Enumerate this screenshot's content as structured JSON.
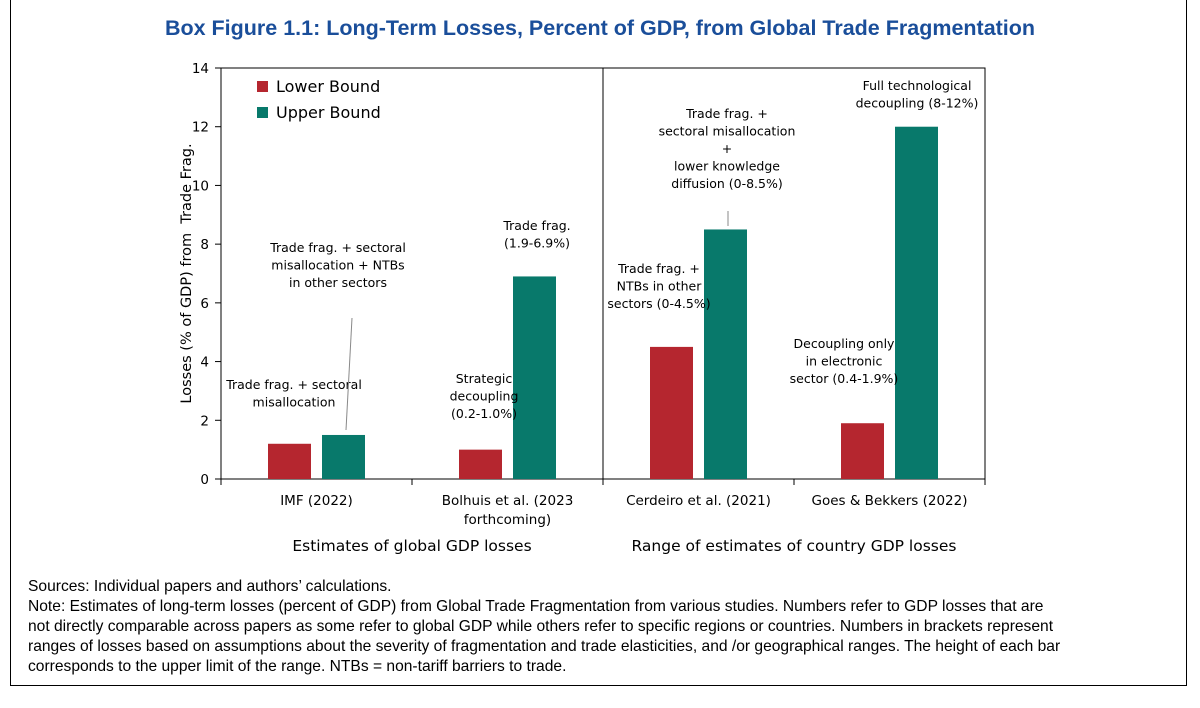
{
  "title": "Box Figure 1.1: Long-Term Losses, Percent of GDP, from Global Trade Fragmentation",
  "chart_data": {
    "type": "bar",
    "categories": [
      "IMF (2022)",
      "Bolhuis et al. (2023 forthcoming)",
      "Cerdeiro et al. (2021)",
      "Goes & Bekkers (2022)"
    ],
    "category_label_lines": [
      [
        "IMF (2022)"
      ],
      [
        "Bolhuis et al. (2023",
        "forthcoming)"
      ],
      [
        "Cerdeiro et al. (2021)"
      ],
      [
        "Goes & Bekkers (2022)"
      ]
    ],
    "series": [
      {
        "name": "Lower Bound",
        "color": "#b5262f",
        "values": [
          1.2,
          1.0,
          4.5,
          1.9
        ]
      },
      {
        "name": "Upper Bound",
        "color": "#08796b",
        "values": [
          1.5,
          6.9,
          8.5,
          12.0
        ]
      }
    ],
    "ylabel": "Losses (% of GDP) from  Trade Frag.",
    "ylim": [
      0,
      14
    ],
    "yticks": [
      0,
      2,
      4,
      6,
      8,
      10,
      12,
      14
    ],
    "legend_position": "top-left",
    "group_labels": [
      "Estimates of global GDP losses",
      "Range of estimates of country GDP losses"
    ],
    "annotations": [
      {
        "category": 0,
        "series": 0,
        "lines": [
          "Trade frag. + sectoral",
          "misallocation"
        ]
      },
      {
        "category": 0,
        "series": 1,
        "lines": [
          "Trade frag. + sectoral",
          "misallocation + NTBs",
          "in other sectors"
        ]
      },
      {
        "category": 1,
        "series": 0,
        "lines": [
          "Strategic",
          "decoupling",
          "(0.2-1.0%)"
        ]
      },
      {
        "category": 1,
        "series": 1,
        "lines": [
          "Trade frag.",
          "(1.9-6.9%)"
        ]
      },
      {
        "category": 2,
        "series": 0,
        "lines": [
          "Trade frag. +",
          "NTBs in other",
          "sectors (0-4.5%)"
        ]
      },
      {
        "category": 2,
        "series": 1,
        "lines": [
          "Trade frag. +",
          "sectoral misallocation",
          "+",
          "lower knowledge",
          "diffusion (0-8.5%)"
        ]
      },
      {
        "category": 3,
        "series": 0,
        "lines": [
          "Decoupling only",
          "in electronic",
          "sector (0.4-1.9%)"
        ]
      },
      {
        "category": 3,
        "series": 1,
        "lines": [
          "Full technological",
          "decoupling (8-12%)"
        ]
      }
    ]
  },
  "notes": {
    "sources": "Sources: Individual papers and authors’ calculations.",
    "note_lines": [
      "Note: Estimates of long-term losses (percent of GDP) from Global Trade Fragmentation from various studies. Numbers refer to GDP losses that are",
      "not directly comparable across papers as some refer to global GDP while others refer to specific regions or countries. Numbers in brackets represent",
      "ranges of losses based on assumptions about the severity of fragmentation and trade elasticities, and /or geographical ranges. The height of each bar",
      "corresponds to the upper limit of the range. NTBs = non-tariff barriers to trade."
    ]
  }
}
